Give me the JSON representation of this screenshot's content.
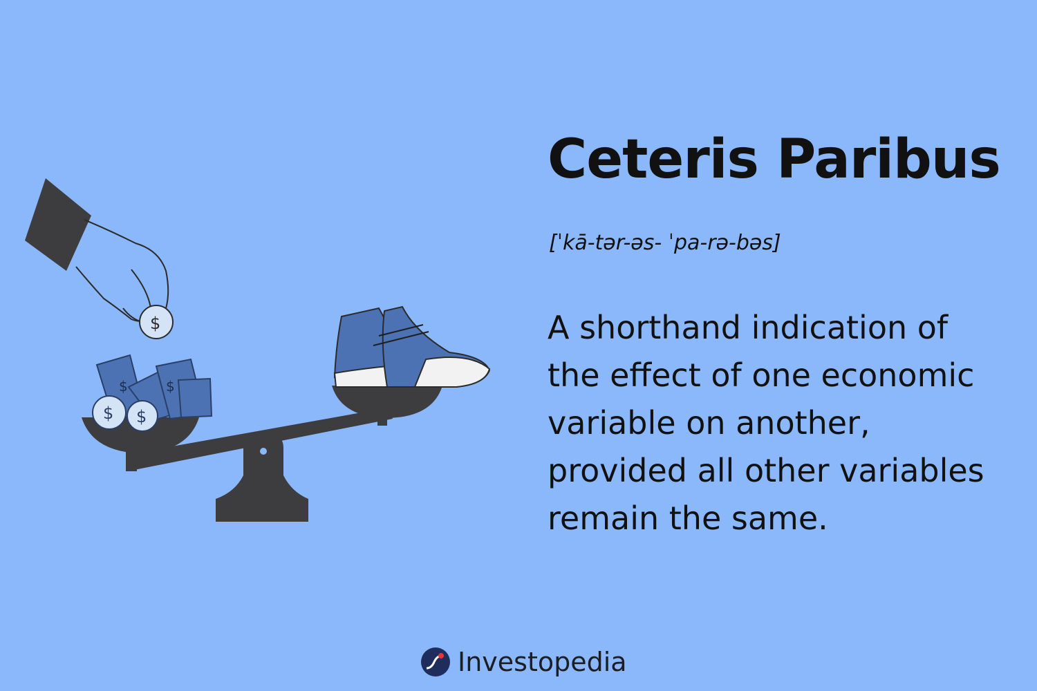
{
  "heading": {
    "title": "Ceteris Paribus",
    "pronunciation": "[ˈkā-tər-əs- ˈpa-rə-bəs]"
  },
  "definition": {
    "lines": [
      "A shorthand indication of",
      "the effect of one economic",
      "variable on another,",
      "provided all other variables",
      "remain the same."
    ]
  },
  "brand": {
    "name": "Investopedia",
    "logo_icon": "investopedia-logo-icon"
  },
  "illustration": {
    "icons": [
      "hand-icon",
      "coin-icon",
      "banknote-icon",
      "scale-icon",
      "sneaker-icon"
    ]
  },
  "colors": {
    "background": "#8ab8fb",
    "text": "#111111",
    "scale": "#3d3d3f",
    "money_blue": "#4d72b3",
    "logo_red": "#e5373a",
    "logo_navy": "#1e2d5c"
  }
}
